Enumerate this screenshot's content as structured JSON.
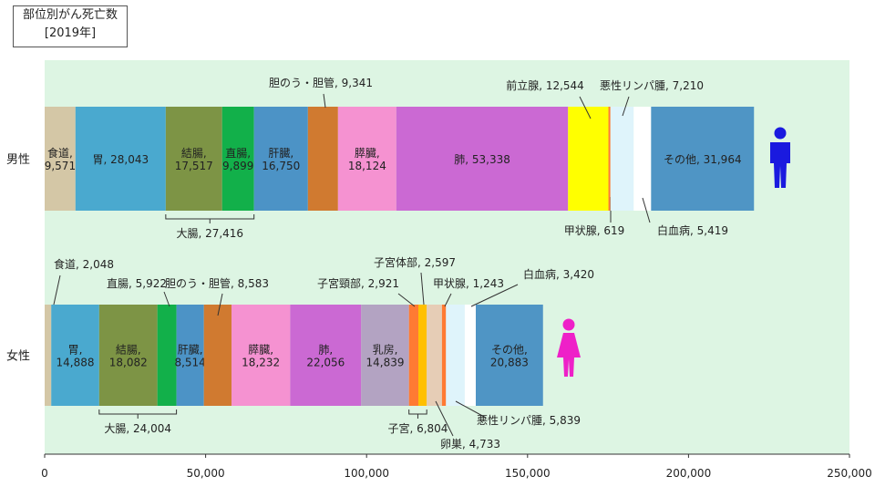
{
  "chart_data": {
    "type": "bar",
    "orientation": "horizontal-stacked",
    "title": "部位別がん死亡数",
    "subtitle": "[2019年]",
    "xlim": [
      0,
      250000
    ],
    "x_ticks": [
      "0",
      "50,000",
      "100,000",
      "150,000",
      "200,000",
      "250,000"
    ],
    "tick_values": [
      0,
      50000,
      100000,
      150000,
      200000,
      250000
    ],
    "grid": false,
    "background": "#ddf5e3",
    "rows": [
      {
        "name": "男性",
        "icon": "male-figure-icon",
        "icon_color": "#1a1adf",
        "segments": [
          {
            "label": "食道,\n9,571",
            "value": 9571,
            "color": "#d4c7a6",
            "place": "inside"
          },
          {
            "label": "胃, 28,043",
            "value": 28043,
            "color": "#4aa9cf",
            "place": "inside"
          },
          {
            "label": "結腸,\n17,517",
            "value": 17517,
            "color": "#7d9445",
            "place": "inside"
          },
          {
            "label": "直腸,\n9,899",
            "value": 9899,
            "color": "#12b04a",
            "place": "inside"
          },
          {
            "label": "肝臓,\n16,750",
            "value": 16750,
            "color": "#4c93c6",
            "place": "inside"
          },
          {
            "label": "胆のう・胆管, 9,341",
            "value": 9341,
            "color": "#d07a30",
            "place": "above"
          },
          {
            "label": "膵臓,\n18,124",
            "value": 18124,
            "color": "#f592d1",
            "place": "inside"
          },
          {
            "label": "肺, 53,338",
            "value": 53338,
            "color": "#cb69d3",
            "place": "inside"
          },
          {
            "label": "前立腺, 12,544",
            "value": 12544,
            "color": "#ffff00",
            "place": "above"
          },
          {
            "label": "甲状腺, 619",
            "value": 619,
            "color": "#ff7a33",
            "place": "below"
          },
          {
            "label": "悪性リンパ腫, 7,210",
            "value": 7210,
            "color": "#dff4fb",
            "place": "above"
          },
          {
            "label": "白血病, 5,419",
            "value": 5419,
            "color": "#ffffff",
            "place": "below"
          },
          {
            "label": "その他, 31,964",
            "value": 31964,
            "color": "#4f95c5",
            "place": "inside"
          }
        ],
        "group": {
          "label": "大腸, 27,416",
          "from": 2,
          "to": 3
        }
      },
      {
        "name": "女性",
        "icon": "female-figure-icon",
        "icon_color": "#ee20c8",
        "segments": [
          {
            "label": "食道, 2,048",
            "value": 2048,
            "color": "#d4c7a6",
            "place": "above"
          },
          {
            "label": "胃,\n14,888",
            "value": 14888,
            "color": "#4aa9cf",
            "place": "inside"
          },
          {
            "label": "結腸,\n18,082",
            "value": 18082,
            "color": "#7d9445",
            "place": "inside"
          },
          {
            "label": "直腸, 5,922",
            "value": 5922,
            "color": "#12b04a",
            "place": "above"
          },
          {
            "label": "肝臓,\n8,514",
            "value": 8514,
            "color": "#4c93c6",
            "place": "inside"
          },
          {
            "label": "胆のう・胆管, 8,583",
            "value": 8583,
            "color": "#d07a30",
            "place": "above"
          },
          {
            "label": "膵臓,\n18,232",
            "value": 18232,
            "color": "#f592d1",
            "place": "inside"
          },
          {
            "label": "肺,\n22,056",
            "value": 22056,
            "color": "#cb69d3",
            "place": "inside"
          },
          {
            "label": "乳房,\n14,839",
            "value": 14839,
            "color": "#b3a3c2",
            "place": "inside"
          },
          {
            "label": "子宮頸部, 2,921",
            "value": 2921,
            "color": "#ff7a33",
            "place": "above"
          },
          {
            "label": "子宮体部, 2,597",
            "value": 2597,
            "color": "#ffc000",
            "place": "above"
          },
          {
            "label": "卵巣, 4,733",
            "value": 4733,
            "color": "#e6cdb6",
            "place": "below"
          },
          {
            "label": "甲状腺, 1,243",
            "value": 1243,
            "color": "#ff7a33",
            "place": "above"
          },
          {
            "label": "悪性リンパ腫, 5,839",
            "value": 5839,
            "color": "#dff4fb",
            "place": "below"
          },
          {
            "label": "白血病, 3,420",
            "value": 3420,
            "color": "#ffffff",
            "place": "above"
          },
          {
            "label": "その他,\n20,883",
            "value": 20883,
            "color": "#4f95c5",
            "place": "inside"
          }
        ],
        "group": [
          {
            "label": "大腸, 24,004",
            "from": 2,
            "to": 3
          },
          {
            "label": "子宮, 6,804",
            "from": 9,
            "to": 10
          }
        ]
      }
    ]
  }
}
